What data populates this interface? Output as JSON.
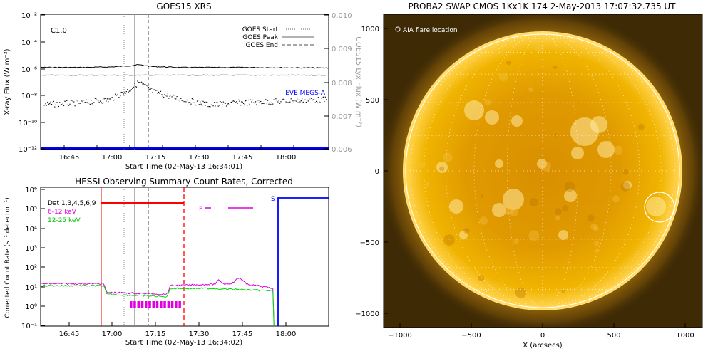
{
  "goes_panel": {
    "title": "GOES15 XRS",
    "flare_class": "C1.0",
    "ylabel_left": "X-ray Flux (W m⁻²)",
    "ylabel_right": "GOES15 Lyx Flux (W m⁻²)",
    "xlabel": "Start Time (02-May-13 16:34:01)",
    "legend": [
      {
        "label": "GOES Start",
        "style": "dotted"
      },
      {
        "label": "GOES Peak",
        "style": "solid"
      },
      {
        "label": "GOES End",
        "style": "dashed"
      }
    ],
    "eve_label": "EVE MEGS-A",
    "y_ticks_left": [
      "10⁻²",
      "10⁻⁴",
      "10⁻⁶",
      "10⁻⁸",
      "10⁻¹⁰",
      "10⁻¹²"
    ],
    "y_ticks_right": [
      "0.010",
      "0.009",
      "0.008",
      "0.007",
      "0.006"
    ],
    "x_ticks": [
      "16:45",
      "17:00",
      "17:15",
      "17:30",
      "17:45",
      "18:00"
    ]
  },
  "hessi_panel": {
    "title": "HESSI Observing Summary Count Rates, Corrected",
    "ylabel": "Corrected Count Rate (s⁻¹ detector⁻¹)",
    "xlabel": "Start Time (02-May-13 16:34:02)",
    "legend": [
      {
        "label": "Det 1,3,4,5,6,9",
        "color": "#000000"
      },
      {
        "label": "6-12 keV",
        "color": "#e000e0"
      },
      {
        "label": "12-25 keV",
        "color": "#00dd00"
      }
    ],
    "flag_f": "F",
    "flag_s": "S",
    "y_ticks": [
      "10⁶",
      "10⁵",
      "10⁴",
      "10³",
      "10²",
      "10¹",
      "10⁰",
      "10⁻¹"
    ],
    "x_ticks": [
      "16:45",
      "17:00",
      "17:15",
      "17:30",
      "17:45",
      "18:00"
    ]
  },
  "swap_panel": {
    "title": "PROBA2 SWAP CMOS 1Kx1K 174  2-May-2013 17:07:32.735 UT",
    "annotation": "AIA flare location",
    "xlabel": "X (arcsecs)",
    "x_ticks": [
      "−1000",
      "−500",
      "0",
      "500",
      "1000"
    ],
    "y_ticks": [
      "1000",
      "500",
      "0",
      "−500",
      "−1000"
    ]
  },
  "colors": {
    "goes_long": "#000000",
    "goes_short_lyx": "#9a9a9a",
    "eve": "#0000ff",
    "hessi_det": "#ff0000",
    "hessi_6_12": "#e000e0",
    "hessi_12_25": "#00dd00",
    "hessi_saa": "#0000ff",
    "sun_disk": "#e6a300",
    "sun_background": "#4a3204"
  },
  "chart_data": [
    {
      "type": "line",
      "title": "GOES15 XRS",
      "xlabel": "Start Time (02-May-13 16:34:01)",
      "ylabel": "X-ray Flux (W m⁻²)",
      "y_scale": "log",
      "ylim": [
        1e-12,
        0.01
      ],
      "x_range_minutes_after_1634": [
        0,
        100
      ],
      "events": {
        "goes_start": "17:04",
        "goes_peak": "17:07",
        "goes_end": "17:12"
      },
      "series": [
        {
          "name": "long",
          "x_min": [
            0,
            15,
            25,
            32,
            35,
            40,
            50,
            70,
            100
          ],
          "values": [
            1.2e-06,
            1.2e-06,
            1.3e-06,
            1.6e-06,
            1.9e-06,
            1.4e-06,
            1.2e-06,
            1.2e-06,
            1.1e-06
          ]
        },
        {
          "name": "short",
          "x_min": [
            0,
            15,
            25,
            32,
            35,
            40,
            50,
            60,
            70,
            100
          ],
          "values": [
            2e-09,
            3e-09,
            5e-09,
            3e-08,
            1e-07,
            2e-08,
            5e-09,
            2e-09,
            3e-09,
            5e-09
          ]
        },
        {
          "name": "Lyx",
          "x_min": [
            0,
            100
          ],
          "values": [
            0.0082,
            0.0082
          ]
        },
        {
          "name": "EVE MEGS-A",
          "x_min": [
            0,
            100
          ],
          "values": [
            1.5e-12,
            1.5e-12
          ]
        }
      ]
    },
    {
      "type": "line",
      "title": "HESSI Observing Summary Count Rates, Corrected",
      "xlabel": "Start Time (02-May-13 16:34:02)",
      "ylabel": "Corrected Count Rate (s⁻¹ detector⁻¹)",
      "y_scale": "log",
      "ylim": [
        0.1,
        1000000
      ],
      "series": [
        {
          "name": "6-12 keV",
          "x_min": [
            0,
            23,
            24,
            45,
            46,
            60,
            70,
            82
          ],
          "values": [
            14,
            14,
            5,
            4,
            11,
            13,
            15,
            8
          ]
        },
        {
          "name": "12-25 keV",
          "x_min": [
            0,
            23,
            24,
            45,
            46,
            60,
            70,
            82
          ],
          "values": [
            11,
            11,
            4,
            3,
            8,
            8,
            7,
            6
          ]
        },
        {
          "name": "Det 1,3,4,5,6,9",
          "x_min": [
            23,
            53
          ],
          "values": [
            180000,
            180000
          ]
        }
      ]
    }
  ]
}
